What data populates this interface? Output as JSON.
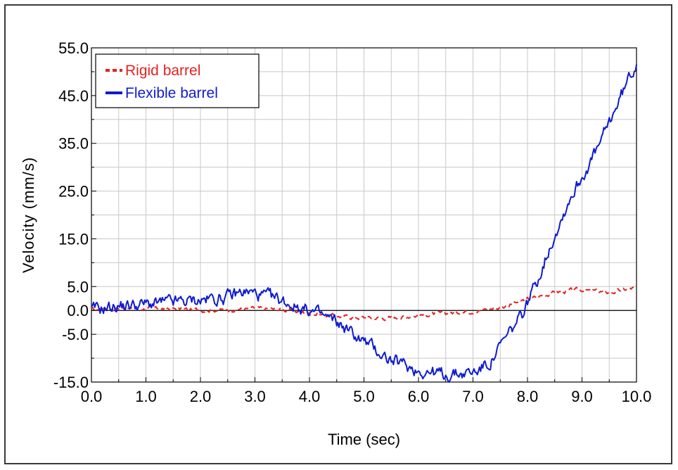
{
  "chart_data": {
    "type": "line",
    "title": "",
    "xlabel": "Time (sec)",
    "ylabel": "Velocity (mm/s)",
    "xlim": [
      0,
      10
    ],
    "ylim": [
      -15,
      55
    ],
    "x_ticks": [
      "0.0",
      "1.0",
      "2.0",
      "3.0",
      "4.0",
      "5.0",
      "6.0",
      "7.0",
      "8.0",
      "9.0",
      "10.0"
    ],
    "y_ticks": [
      "-15.0",
      "-5.0",
      "0.0",
      "5.0",
      "15.0",
      "25.0",
      "35.0",
      "45.0",
      "55.0"
    ],
    "grid": true,
    "legend_position": "top-left",
    "series": [
      {
        "name": "Rigid barrel",
        "color": "#e3231f",
        "style": "dashed",
        "x": [
          0,
          0.5,
          1.0,
          1.5,
          2.0,
          2.5,
          3.0,
          3.5,
          4.0,
          4.5,
          5.0,
          5.5,
          6.0,
          6.5,
          7.0,
          7.5,
          8.0,
          8.5,
          9.0,
          9.5,
          10.0
        ],
        "y": [
          0.2,
          0.5,
          0.4,
          0.3,
          0.1,
          0.2,
          0.4,
          0.2,
          -0.6,
          -1.2,
          -1.5,
          -1.6,
          -1.0,
          -0.6,
          -0.1,
          0.6,
          2.3,
          3.8,
          4.3,
          3.7,
          4.8
        ]
      },
      {
        "name": "Flexible barrel",
        "color": "#0f1bd0",
        "style": "solid",
        "x": [
          0,
          0.5,
          1.0,
          1.5,
          2.0,
          2.5,
          2.8,
          3.0,
          3.5,
          4.0,
          4.5,
          5.0,
          5.5,
          6.0,
          6.5,
          7.0,
          7.3,
          7.6,
          7.9,
          8.2,
          8.5,
          8.8,
          9.0,
          9.3,
          9.6,
          10.0
        ],
        "y": [
          0,
          1.0,
          1.3,
          1.7,
          2.2,
          2.8,
          4.0,
          3.5,
          2.0,
          0.0,
          -2.5,
          -6.5,
          -10.5,
          -12.5,
          -13.5,
          -13.0,
          -11.0,
          -6.0,
          -1.0,
          7.0,
          16.0,
          24.0,
          28.0,
          34.0,
          42.0,
          52.0
        ]
      }
    ]
  }
}
